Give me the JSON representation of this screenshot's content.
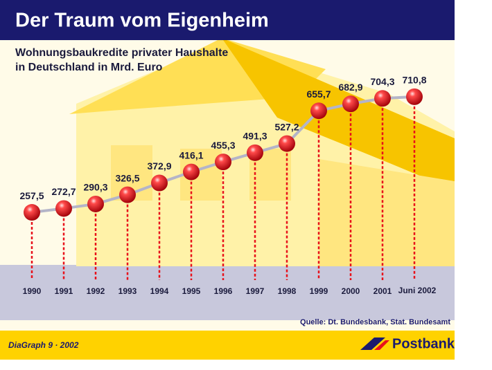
{
  "chart_data": {
    "type": "line",
    "title": "Der Traum vom Eigenheim",
    "subtitle": [
      "Wohnungsbaukredite privater Haushalte",
      "in Deutschland in Mrd. Euro"
    ],
    "categories": [
      "1990",
      "1991",
      "1992",
      "1993",
      "1994",
      "1995",
      "1996",
      "1997",
      "1998",
      "1999",
      "2000",
      "2001",
      "Juni 2002"
    ],
    "values": [
      257.5,
      272.7,
      290.3,
      326.5,
      372.9,
      416.1,
      455.3,
      491.3,
      527.2,
      655.7,
      682.9,
      704.3,
      710.8
    ],
    "value_labels": [
      "257,5",
      "272,7",
      "290,3",
      "326,5",
      "372,9",
      "416,1",
      "455,3",
      "491,3",
      "527,2",
      "655,7",
      "682,9",
      "704,3",
      "710,8"
    ],
    "color": "#e8101a",
    "line_color": "#b4b4c8",
    "ylim": [
      0,
      800
    ],
    "source": "Quelle: Dt. Bundesbank, Stat. Bundesamt",
    "footer": "DiaGraph 9 · 2002",
    "logo": "Postbank"
  }
}
